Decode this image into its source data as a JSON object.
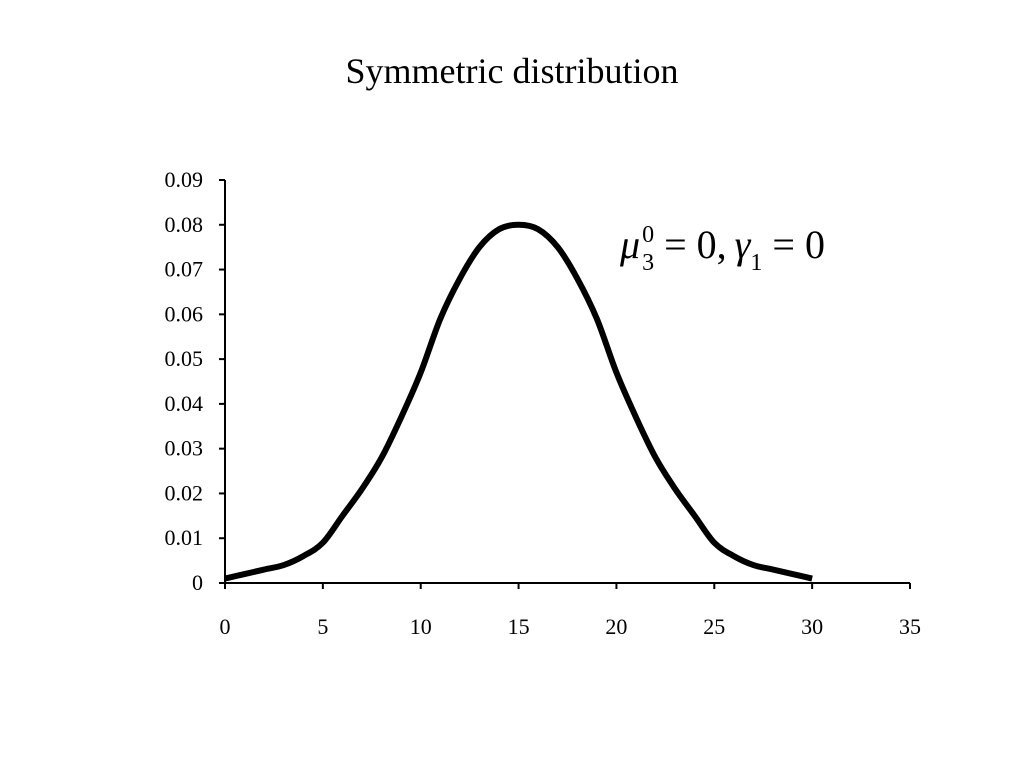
{
  "chart_data": {
    "type": "line",
    "title": "Symmetric distribution",
    "xlabel": "",
    "ylabel": "",
    "xlim": [
      0,
      35
    ],
    "ylim": [
      0,
      0.09
    ],
    "x_ticks": [
      "0",
      "5",
      "10",
      "15",
      "20",
      "25",
      "30",
      "35"
    ],
    "y_ticks": [
      "0",
      "0.01",
      "0.02",
      "0.03",
      "0.04",
      "0.05",
      "0.06",
      "0.07",
      "0.08",
      "0.09"
    ],
    "grid": false,
    "legend": "none",
    "annotation": {
      "mu": "μ",
      "mu_sup": "0",
      "mu_sub": "3",
      "mu_rhs": " = 0,",
      "gamma": "γ",
      "gamma_sub": "1",
      "gamma_rhs": " = 0"
    },
    "series": [
      {
        "color": "#000000",
        "x": [
          0,
          1,
          2,
          3,
          4,
          5,
          6,
          7,
          8,
          9,
          10,
          11,
          12,
          13,
          14,
          15,
          16,
          17,
          18,
          19,
          20,
          21,
          22,
          23,
          24,
          25,
          26,
          27,
          28,
          29,
          30
        ],
        "y": [
          0.001,
          0.002,
          0.003,
          0.004,
          0.006,
          0.009,
          0.015,
          0.021,
          0.028,
          0.037,
          0.047,
          0.059,
          0.068,
          0.075,
          0.079,
          0.08,
          0.079,
          0.075,
          0.068,
          0.059,
          0.047,
          0.037,
          0.028,
          0.021,
          0.015,
          0.009,
          0.006,
          0.004,
          0.003,
          0.002,
          0.001
        ]
      }
    ]
  }
}
